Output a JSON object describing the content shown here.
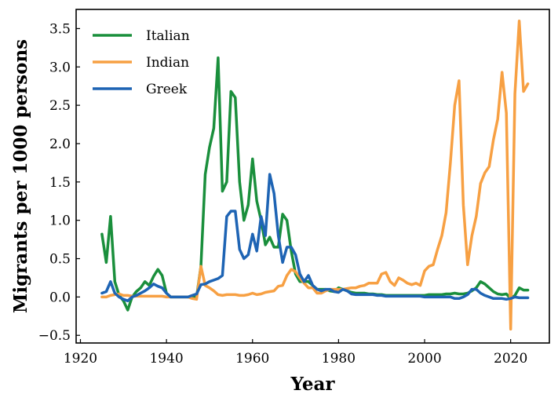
{
  "chart_data": {
    "type": "line",
    "title": "",
    "xlabel": "Year",
    "ylabel": "Migrants per 1000 persons",
    "xlim": [
      1919,
      2029
    ],
    "ylim": [
      -0.6,
      3.75
    ],
    "xticks": [
      1920,
      1940,
      1960,
      1980,
      2000,
      2020
    ],
    "xtick_labels": [
      "1920",
      "1940",
      "1960",
      "1980",
      "2000",
      "2020"
    ],
    "yticks": [
      -0.5,
      0.0,
      0.5,
      1.0,
      1.5,
      2.0,
      2.5,
      3.0,
      3.5
    ],
    "ytick_labels": [
      "−0.5",
      "0.0",
      "0.5",
      "1.0",
      "1.5",
      "2.0",
      "2.5",
      "3.0",
      "3.5"
    ],
    "grid": false,
    "legend_position": "top-left",
    "series": [
      {
        "name": "Italian",
        "color": "#1a8f3c",
        "x": [
          1925,
          1926,
          1927,
          1928,
          1929,
          1930,
          1931,
          1932,
          1933,
          1934,
          1935,
          1936,
          1937,
          1938,
          1939,
          1940,
          1941,
          1942,
          1943,
          1944,
          1945,
          1946,
          1947,
          1948,
          1949,
          1950,
          1951,
          1952,
          1953,
          1954,
          1955,
          1956,
          1957,
          1958,
          1959,
          1960,
          1961,
          1962,
          1963,
          1964,
          1965,
          1966,
          1967,
          1968,
          1969,
          1970,
          1971,
          1972,
          1973,
          1974,
          1975,
          1976,
          1977,
          1978,
          1979,
          1980,
          1981,
          1982,
          1983,
          1984,
          1985,
          1986,
          1987,
          1988,
          1989,
          1990,
          1991,
          1992,
          1993,
          1994,
          1995,
          1996,
          1997,
          1998,
          1999,
          2000,
          2001,
          2002,
          2003,
          2004,
          2005,
          2006,
          2007,
          2008,
          2009,
          2010,
          2011,
          2012,
          2013,
          2014,
          2015,
          2016,
          2017,
          2018,
          2019,
          2020,
          2021,
          2022,
          2023,
          2024
        ],
        "values": [
          0.82,
          0.45,
          1.05,
          0.2,
          0.02,
          -0.05,
          -0.17,
          0.0,
          0.07,
          0.12,
          0.2,
          0.15,
          0.27,
          0.36,
          0.28,
          0.05,
          0.0,
          0.0,
          0.0,
          0.0,
          0.0,
          0.0,
          0.0,
          0.4,
          1.6,
          1.95,
          2.2,
          3.12,
          1.38,
          1.5,
          2.68,
          2.6,
          1.5,
          1.0,
          1.2,
          1.8,
          1.25,
          1.0,
          0.68,
          0.78,
          0.65,
          0.65,
          1.08,
          1.0,
          0.6,
          0.3,
          0.2,
          0.2,
          0.2,
          0.15,
          0.1,
          0.1,
          0.1,
          0.08,
          0.07,
          0.12,
          0.1,
          0.08,
          0.06,
          0.05,
          0.05,
          0.05,
          0.04,
          0.04,
          0.03,
          0.03,
          0.02,
          0.02,
          0.02,
          0.02,
          0.02,
          0.02,
          0.02,
          0.02,
          0.02,
          0.02,
          0.03,
          0.03,
          0.03,
          0.03,
          0.04,
          0.04,
          0.05,
          0.04,
          0.04,
          0.05,
          0.08,
          0.12,
          0.2,
          0.17,
          0.12,
          0.07,
          0.04,
          0.03,
          0.04,
          -0.02,
          0.02,
          0.12,
          0.09,
          0.09
        ]
      },
      {
        "name": "Indian",
        "color": "#f7a043",
        "x": [
          1925,
          1926,
          1927,
          1928,
          1929,
          1930,
          1931,
          1932,
          1933,
          1934,
          1935,
          1936,
          1937,
          1938,
          1939,
          1940,
          1941,
          1942,
          1943,
          1944,
          1945,
          1946,
          1947,
          1948,
          1949,
          1950,
          1951,
          1952,
          1953,
          1954,
          1955,
          1956,
          1957,
          1958,
          1959,
          1960,
          1961,
          1962,
          1963,
          1964,
          1965,
          1966,
          1967,
          1968,
          1969,
          1970,
          1971,
          1972,
          1973,
          1974,
          1975,
          1976,
          1977,
          1978,
          1979,
          1980,
          1981,
          1982,
          1983,
          1984,
          1985,
          1986,
          1987,
          1988,
          1989,
          1990,
          1991,
          1992,
          1993,
          1994,
          1995,
          1996,
          1997,
          1998,
          1999,
          2000,
          2001,
          2002,
          2003,
          2004,
          2005,
          2006,
          2007,
          2008,
          2009,
          2010,
          2011,
          2012,
          2013,
          2014,
          2015,
          2016,
          2017,
          2018,
          2019,
          2020,
          2021,
          2022,
          2023,
          2024
        ],
        "values": [
          0.0,
          0.0,
          0.02,
          0.03,
          0.04,
          0.02,
          0.02,
          0.01,
          0.01,
          0.01,
          0.01,
          0.01,
          0.01,
          0.01,
          0.01,
          0.0,
          0.0,
          0.0,
          0.0,
          0.0,
          0.0,
          -0.02,
          -0.03,
          0.4,
          0.15,
          0.12,
          0.08,
          0.03,
          0.02,
          0.03,
          0.03,
          0.03,
          0.02,
          0.02,
          0.03,
          0.05,
          0.03,
          0.04,
          0.06,
          0.07,
          0.08,
          0.14,
          0.15,
          0.28,
          0.36,
          0.33,
          0.25,
          0.18,
          0.12,
          0.12,
          0.05,
          0.05,
          0.08,
          0.1,
          0.1,
          0.1,
          0.1,
          0.11,
          0.12,
          0.12,
          0.14,
          0.15,
          0.18,
          0.18,
          0.18,
          0.3,
          0.32,
          0.2,
          0.15,
          0.25,
          0.22,
          0.18,
          0.16,
          0.18,
          0.15,
          0.34,
          0.4,
          0.42,
          0.62,
          0.8,
          1.1,
          1.75,
          2.5,
          2.82,
          1.2,
          0.42,
          0.8,
          1.05,
          1.48,
          1.62,
          1.7,
          2.05,
          2.32,
          2.93,
          2.4,
          -0.42,
          2.65,
          3.6,
          2.68,
          2.78
        ]
      },
      {
        "name": "Greek",
        "color": "#1e64b4",
        "x": [
          1925,
          1926,
          1927,
          1928,
          1929,
          1930,
          1931,
          1932,
          1933,
          1934,
          1935,
          1936,
          1937,
          1938,
          1939,
          1940,
          1941,
          1942,
          1943,
          1944,
          1945,
          1946,
          1947,
          1948,
          1949,
          1950,
          1951,
          1952,
          1953,
          1954,
          1955,
          1956,
          1957,
          1958,
          1959,
          1960,
          1961,
          1962,
          1963,
          1964,
          1965,
          1966,
          1967,
          1968,
          1969,
          1970,
          1971,
          1972,
          1973,
          1974,
          1975,
          1976,
          1977,
          1978,
          1979,
          1980,
          1981,
          1982,
          1983,
          1984,
          1985,
          1986,
          1987,
          1988,
          1989,
          1990,
          1991,
          1992,
          1993,
          1994,
          1995,
          1996,
          1997,
          1998,
          1999,
          2000,
          2001,
          2002,
          2003,
          2004,
          2005,
          2006,
          2007,
          2008,
          2009,
          2010,
          2011,
          2012,
          2013,
          2014,
          2015,
          2016,
          2017,
          2018,
          2019,
          2020,
          2021,
          2022,
          2023,
          2024
        ],
        "values": [
          0.05,
          0.07,
          0.2,
          0.05,
          0.0,
          -0.03,
          -0.05,
          0.0,
          0.02,
          0.05,
          0.08,
          0.12,
          0.17,
          0.14,
          0.12,
          0.05,
          0.0,
          0.0,
          0.0,
          0.0,
          0.0,
          0.02,
          0.04,
          0.16,
          0.17,
          0.2,
          0.22,
          0.24,
          0.28,
          1.05,
          1.12,
          1.12,
          0.62,
          0.5,
          0.55,
          0.82,
          0.6,
          1.05,
          0.8,
          1.6,
          1.35,
          0.8,
          0.45,
          0.65,
          0.65,
          0.55,
          0.3,
          0.2,
          0.28,
          0.15,
          0.1,
          0.08,
          0.1,
          0.1,
          0.07,
          0.06,
          0.1,
          0.08,
          0.04,
          0.03,
          0.03,
          0.03,
          0.03,
          0.03,
          0.02,
          0.02,
          0.01,
          0.01,
          0.01,
          0.01,
          0.01,
          0.01,
          0.01,
          0.01,
          0.01,
          0.0,
          0.0,
          0.0,
          0.0,
          0.0,
          0.0,
          0.0,
          -0.02,
          -0.02,
          0.0,
          0.03,
          0.1,
          0.1,
          0.05,
          0.02,
          0.0,
          -0.02,
          -0.02,
          -0.02,
          -0.03,
          -0.02,
          0.0,
          -0.01,
          -0.01,
          -0.01
        ]
      }
    ]
  }
}
